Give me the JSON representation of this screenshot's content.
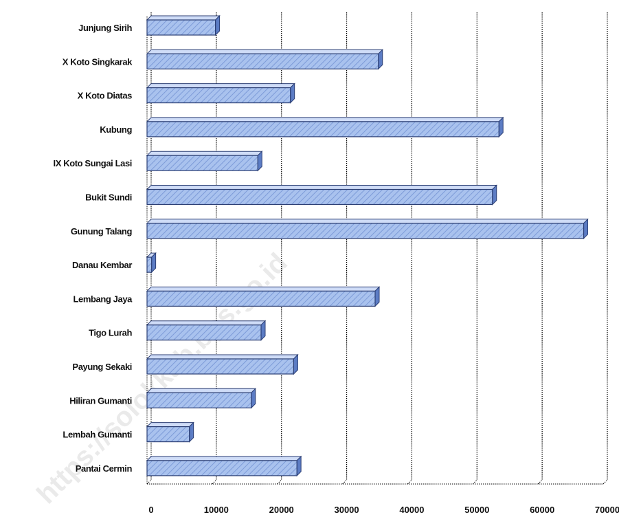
{
  "watermark": "https://solokkab.bps.go.id",
  "colors": {
    "bar_fill": "#a9c2ee",
    "bar_top": "#cfdcf7",
    "bar_end": "#5c7cc4",
    "bar_stroke": "#2c3f74",
    "gridline": "#000000"
  },
  "chart_data": {
    "type": "bar",
    "orientation": "horizontal",
    "title": "",
    "xlabel": "",
    "ylabel": "",
    "xlim": [
      0,
      70000
    ],
    "x_ticks": [
      0,
      10000,
      20000,
      30000,
      40000,
      50000,
      60000,
      70000
    ],
    "x_tick_labels": [
      "0",
      "10000",
      "20000",
      "30000",
      "40000",
      "50000",
      "60000",
      "70000"
    ],
    "grid": "vertical",
    "legend": "none",
    "categories": [
      "Junjung Sirih",
      "X Koto Singkarak",
      "X Koto Diatas",
      "Kubung",
      "IX Koto Sungai Lasi",
      "Bukit Sundi",
      "Gunung Talang",
      "Danau Kembar",
      "Lembang Jaya",
      "Tigo Lurah",
      "Payung Sekaki",
      "Hiliran Gumanti",
      "Lembah Gumanti",
      "Pantai Cermin"
    ],
    "values": [
      10500,
      35500,
      22000,
      54000,
      17000,
      53000,
      67000,
      700,
      35000,
      17500,
      22500,
      16000,
      6500,
      23000
    ]
  }
}
